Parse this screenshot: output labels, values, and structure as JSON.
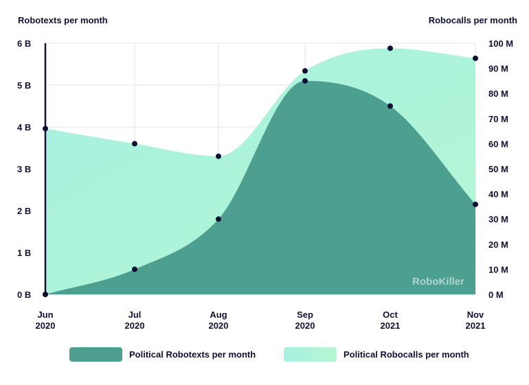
{
  "chart_data": {
    "type": "area",
    "categories": [
      {
        "line1": "Jun",
        "line2": "2020"
      },
      {
        "line1": "Jul",
        "line2": "2020"
      },
      {
        "line1": "Aug",
        "line2": "2020"
      },
      {
        "line1": "Sep",
        "line2": "2020"
      },
      {
        "line1": "Oct",
        "line2": "2021"
      },
      {
        "line1": "Nov",
        "line2": "2021"
      }
    ],
    "left_axis": {
      "title": "Robotexts per month",
      "min": 0,
      "max": 6,
      "ticks": [
        0,
        1,
        2,
        3,
        4,
        5,
        6
      ],
      "tick_labels": [
        "0 B",
        "1 B",
        "2 B",
        "3 B",
        "4 B",
        "5 B",
        "6 B"
      ]
    },
    "right_axis": {
      "title": "Robocalls per month",
      "min": 0,
      "max": 100,
      "ticks": [
        0,
        10,
        20,
        30,
        40,
        50,
        60,
        70,
        80,
        90,
        100
      ],
      "tick_labels": [
        "0 M",
        "10 M",
        "20 M",
        "30 M",
        "40 M",
        "50 M",
        "60 M",
        "70 M",
        "80 M",
        "90 M",
        "100 M"
      ]
    },
    "series": [
      {
        "name": "Political Robotexts per month",
        "axis": "left",
        "unit": "B",
        "values": [
          0,
          0.6,
          1.8,
          5.1,
          4.5,
          2.15
        ],
        "color": "#4d9f90"
      },
      {
        "name": "Political Robocalls per month",
        "axis": "right",
        "unit": "M",
        "values": [
          66,
          60,
          55,
          89,
          98,
          94
        ],
        "color": "#a7f0e2"
      }
    ],
    "grid": true,
    "legend_position": "bottom",
    "watermark": "RoboKiller"
  },
  "colors": {
    "text": "#0f1033",
    "grid": "#e6e6ea",
    "texts_fill": "#4d9f90",
    "calls_fill_start": "#a7f0e2",
    "calls_fill_end": "#b4f7d2",
    "point": "#0f1033"
  }
}
